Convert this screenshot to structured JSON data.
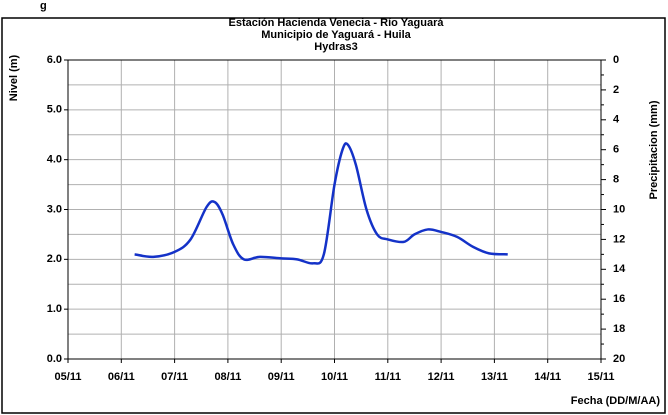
{
  "header_fragment": "g",
  "chart_data": {
    "type": "line",
    "title": "Estación Hacienda  Venecia - Río  Yaguará",
    "subtitle": [
      "Municipio de Yaguará - Huila",
      "Hydras3"
    ],
    "ylabel": "Nivel (m)",
    "y2label": "Precipitacion (mm)",
    "xlabel": "Fecha (DD/M/AA)",
    "xlim": [
      5,
      15
    ],
    "xticks": [
      {
        "value": 5,
        "label": "05/11"
      },
      {
        "value": 6,
        "label": "06/11"
      },
      {
        "value": 7,
        "label": "07/11"
      },
      {
        "value": 8,
        "label": "08/11"
      },
      {
        "value": 9,
        "label": "09/11"
      },
      {
        "value": 10,
        "label": "10/11"
      },
      {
        "value": 11,
        "label": "11/11"
      },
      {
        "value": 12,
        "label": "12/11"
      },
      {
        "value": 13,
        "label": "13/11"
      },
      {
        "value": 14,
        "label": "14/11"
      },
      {
        "value": 15,
        "label": "15/11"
      }
    ],
    "ylim": [
      0,
      6
    ],
    "yticks": [
      {
        "value": 0,
        "label": "0.0"
      },
      {
        "value": 1,
        "label": "1.0"
      },
      {
        "value": 2,
        "label": "2.0"
      },
      {
        "value": 3,
        "label": "3.0"
      },
      {
        "value": 4,
        "label": "4.0"
      },
      {
        "value": 5,
        "label": "5.0"
      },
      {
        "value": 6,
        "label": "6.0"
      }
    ],
    "y2lim": [
      0,
      20
    ],
    "y2_inverted": true,
    "y2ticks": [
      0,
      2,
      4,
      6,
      8,
      10,
      12,
      14,
      16,
      18,
      20
    ],
    "grid": true,
    "series": [
      {
        "name": "Nivel",
        "color": "#1432c8",
        "x": [
          6.25,
          6.6,
          7.0,
          7.3,
          7.6,
          7.75,
          7.9,
          8.1,
          8.3,
          8.6,
          9.0,
          9.3,
          9.6,
          9.8,
          10.0,
          10.15,
          10.25,
          10.4,
          10.6,
          10.8,
          11.0,
          11.3,
          11.5,
          11.75,
          12.0,
          12.3,
          12.6,
          12.9,
          13.25
        ],
        "values": [
          2.1,
          2.05,
          2.15,
          2.4,
          3.05,
          3.15,
          2.9,
          2.3,
          2.0,
          2.05,
          2.02,
          2.0,
          1.92,
          2.1,
          3.5,
          4.2,
          4.3,
          3.9,
          3.0,
          2.5,
          2.4,
          2.35,
          2.5,
          2.6,
          2.55,
          2.45,
          2.25,
          2.12,
          2.1
        ]
      }
    ]
  }
}
